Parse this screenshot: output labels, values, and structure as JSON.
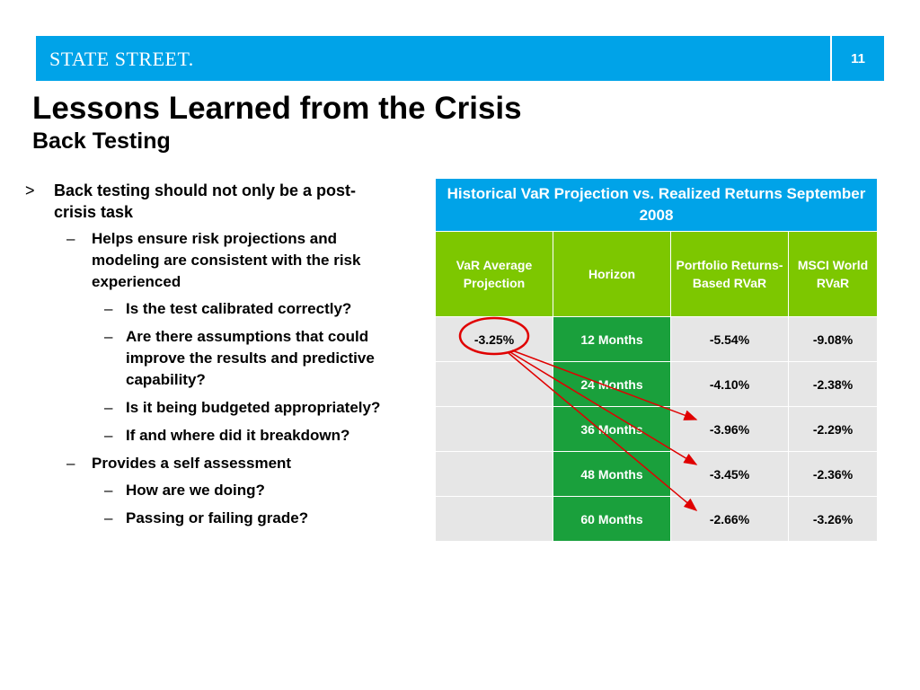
{
  "header": {
    "logo": "STATE STREET.",
    "page_number": "11"
  },
  "title": "Lessons Learned from the Crisis",
  "subtitle": "Back Testing",
  "bullets": {
    "main": "Back testing should not only be a post-crisis task",
    "main_marker": ">",
    "sub_marker": "–",
    "sub1": "Helps ensure risk projections and modeling are consistent with the risk experienced",
    "sub1_items": [
      "Is the test calibrated correctly?",
      "Are there assumptions that could improve the results and predictive capability?",
      "Is it being budgeted appropriately?",
      "If and where did it breakdown?"
    ],
    "sub2": "Provides a self assessment",
    "sub2_items": [
      "How are we doing?",
      "Passing or failing grade?"
    ]
  },
  "table": {
    "title": "Historical VaR Projection vs. Realized Returns September 2008",
    "columns": [
      "VaR Average Projection",
      "Horizon",
      "Portfolio Returns-Based RVaR",
      "MSCI World RVaR"
    ],
    "rows": [
      [
        "-3.25%",
        "12 Months",
        "-5.54%",
        "-9.08%"
      ],
      [
        "",
        "24 Months",
        "-4.10%",
        "-2.38%"
      ],
      [
        "",
        "36 Months",
        "-3.96%",
        "-2.29%"
      ],
      [
        "",
        "48 Months",
        "-3.45%",
        "-2.36%"
      ],
      [
        "",
        "60 Months",
        "-2.66%",
        "-3.26%"
      ]
    ]
  },
  "colors": {
    "banner": "#00a3e8",
    "header_green": "#7dc700",
    "horizon_green": "#1aa03c",
    "annotation_red": "#e00000"
  }
}
